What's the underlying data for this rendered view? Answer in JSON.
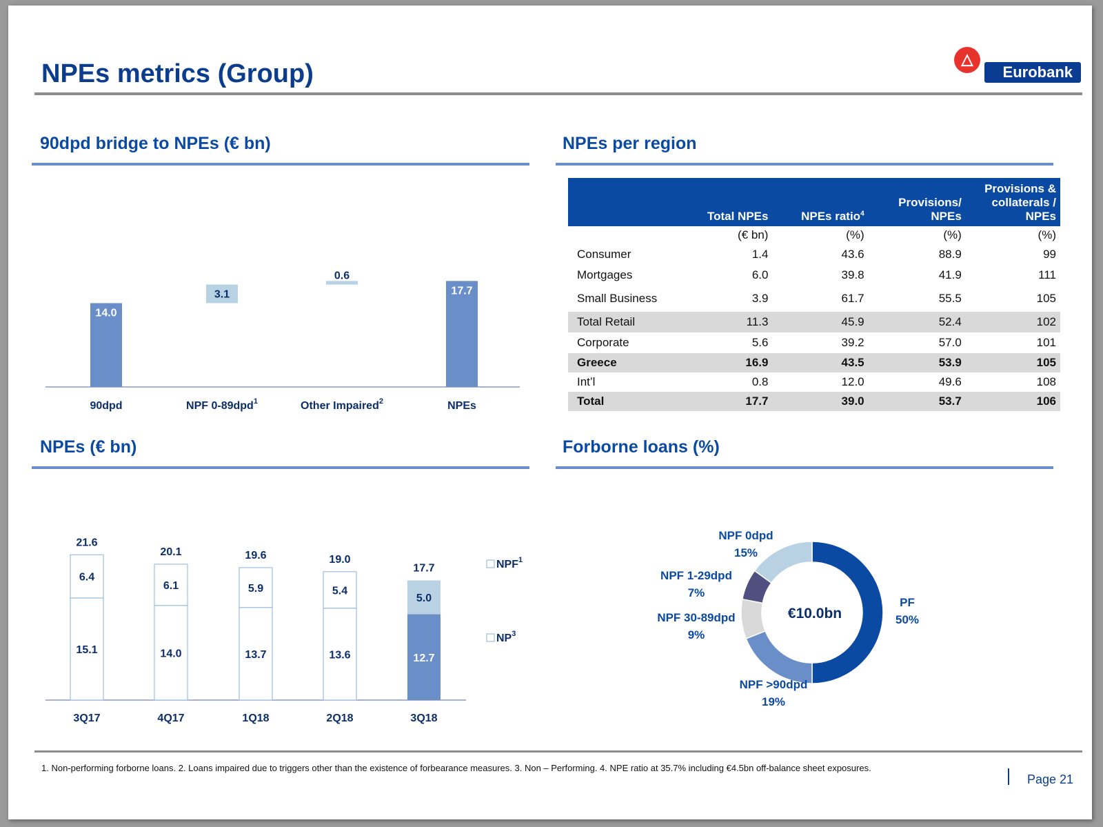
{
  "title": "NPEs metrics (Group)",
  "logo_text": "Eurobank",
  "colors": {
    "primary": "#0a4aa2",
    "bar": "#6a8fc8",
    "light": "#b8d2e4",
    "navy": "#0b2e6b"
  },
  "sections": {
    "bridge_title": "90dpd bridge to NPEs (€ bn)",
    "region_title": "NPEs per region",
    "npes_title": "NPEs (€ bn)",
    "forborne_title": "Forborne loans (%)"
  },
  "region_table": {
    "headers": [
      "",
      "Total NPEs",
      "NPEs ratio",
      "Provisions/ NPEs",
      "Provisions & collaterals / NPEs"
    ],
    "ratio_sup": "4",
    "units": [
      "",
      "(€ bn)",
      "(%)",
      "(%)",
      "(%)"
    ],
    "rows": [
      {
        "label": "Consumer",
        "values": [
          "1.4",
          "43.6",
          "88.9",
          "99"
        ]
      },
      {
        "label": "Mortgages",
        "values": [
          "6.0",
          "39.8",
          "41.9",
          "111"
        ]
      },
      {
        "label": "Small Business",
        "values": [
          "3.9",
          "61.7",
          "55.5",
          "105"
        ]
      },
      {
        "label": "Total Retail",
        "values": [
          "11.3",
          "45.9",
          "52.4",
          "102"
        ]
      },
      {
        "label": "Corporate",
        "values": [
          "5.6",
          "39.2",
          "57.0",
          "101"
        ]
      },
      {
        "label": "Greece",
        "values": [
          "16.9",
          "43.5",
          "53.9",
          "105"
        ]
      },
      {
        "label": "Int’l",
        "values": [
          "0.8",
          "12.0",
          "49.6",
          "108"
        ]
      },
      {
        "label": "Total",
        "values": [
          "17.7",
          "39.0",
          "53.7",
          "106"
        ]
      }
    ]
  },
  "footnote": "1. Non-performing forborne loans. 2. Loans impaired due to triggers other than the existence of forbearance measures. 3. Non – Performing. 4. NPE ratio at 35.7% including €4.5bn off-balance sheet exposures.",
  "page_label": "Page 21",
  "chart_data": [
    {
      "type": "bar",
      "subtype": "waterfall",
      "title": "90dpd bridge to NPEs (€ bn)",
      "categories": [
        "90dpd",
        "NPF 0-89dpd",
        "Other Impaired",
        "NPEs"
      ],
      "category_sups": [
        "",
        "1",
        "2",
        ""
      ],
      "values": [
        14.0,
        3.1,
        0.6,
        17.7
      ],
      "labels": [
        "14.0",
        "3.1",
        "0.6",
        "17.7"
      ],
      "kinds": [
        "total",
        "delta",
        "delta",
        "total"
      ],
      "ylim": [
        0,
        22
      ]
    },
    {
      "type": "bar",
      "subtype": "stacked",
      "title": "NPEs (€ bn)",
      "categories": [
        "3Q17",
        "4Q17",
        "1Q18",
        "2Q18",
        "3Q18"
      ],
      "series": [
        {
          "name": "NP",
          "sup": "3",
          "values": [
            15.1,
            14.0,
            13.7,
            13.6,
            12.7
          ],
          "labels": [
            "15.1",
            "14.0",
            "13.7",
            "13.6",
            "12.7"
          ]
        },
        {
          "name": "NPF",
          "sup": "1",
          "values": [
            6.4,
            6.1,
            5.9,
            5.4,
            5.0
          ],
          "labels": [
            "6.4",
            "6.1",
            "5.9",
            "5.4",
            "5.0"
          ]
        }
      ],
      "totals": [
        "21.6",
        "20.1",
        "19.6",
        "19.0",
        "17.7"
      ],
      "ylim": [
        0,
        26
      ],
      "legend": "right"
    },
    {
      "type": "pie",
      "subtype": "donut",
      "title": "Forborne loans (%)",
      "center_label": "€10.0bn",
      "slices": [
        {
          "label": "PF",
          "value": 50,
          "pct": "50%",
          "color": "#0a4aa2"
        },
        {
          "label": "NPF >90dpd",
          "value": 19,
          "pct": "19%",
          "color": "#6a8fc8"
        },
        {
          "label": "NPF 30-89dpd",
          "value": 9,
          "pct": "9%",
          "color": "#d9d9d9"
        },
        {
          "label": "NPF 1-29dpd",
          "value": 7,
          "pct": "7%",
          "color": "#4f4f80"
        },
        {
          "label": "NPF 0dpd",
          "value": 15,
          "pct": "15%",
          "color": "#b8d2e4"
        }
      ]
    }
  ]
}
